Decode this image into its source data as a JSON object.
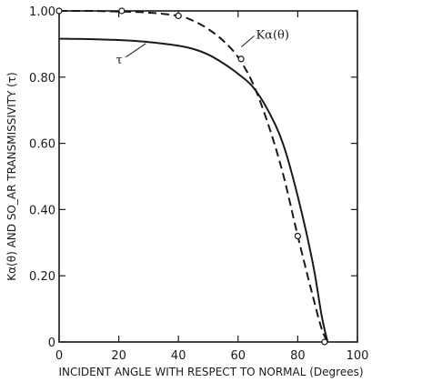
{
  "chart_data": {
    "type": "line",
    "xlabel": "INCIDENT ANGLE WITH RESPECT TO NORMAL (Degrees)",
    "ylabel": "Kα(θ) AND SO_AR TRANSMISSIVITY (τ)",
    "xlim": [
      0,
      100
    ],
    "ylim": [
      0,
      1.0
    ],
    "x_ticks": [
      0,
      20,
      40,
      60,
      80,
      100
    ],
    "x_tick_labels": [
      "0",
      "20",
      "40",
      "60",
      "80",
      "100"
    ],
    "y_ticks": [
      0,
      0.2,
      0.4,
      0.6,
      0.8,
      1.0
    ],
    "y_tick_labels": [
      "0",
      "0.20",
      "0.40",
      "0.60",
      "0.80",
      "1.00"
    ],
    "grid": false,
    "series": [
      {
        "name": "Kα(θ)",
        "style": "dashed",
        "color": "#1a1a1a",
        "x": [
          0,
          10,
          20,
          30,
          40,
          45,
          50,
          55,
          60,
          65,
          70,
          75,
          80,
          85,
          88,
          90
        ],
        "y": [
          1.0,
          1.0,
          0.998,
          0.995,
          0.985,
          0.97,
          0.945,
          0.91,
          0.86,
          0.78,
          0.66,
          0.51,
          0.32,
          0.14,
          0.04,
          0.0
        ],
        "markers": {
          "x": [
            0,
            21,
            40,
            61,
            80,
            89
          ],
          "y": [
            1.0,
            1.0,
            0.985,
            0.855,
            0.32,
            0.0
          ]
        }
      },
      {
        "name": "τ",
        "style": "solid",
        "color": "#1a1a1a",
        "x": [
          0,
          10,
          20,
          30,
          40,
          45,
          50,
          55,
          60,
          65,
          70,
          75,
          80,
          85,
          88,
          90
        ],
        "y": [
          0.916,
          0.915,
          0.912,
          0.906,
          0.895,
          0.885,
          0.868,
          0.842,
          0.81,
          0.77,
          0.7,
          0.6,
          0.44,
          0.24,
          0.08,
          0.0
        ]
      }
    ],
    "annotations": [
      {
        "text": "Kα(θ)",
        "x": 66,
        "y": 0.93
      },
      {
        "text": "τ",
        "x": 19,
        "y": 0.855
      }
    ]
  }
}
